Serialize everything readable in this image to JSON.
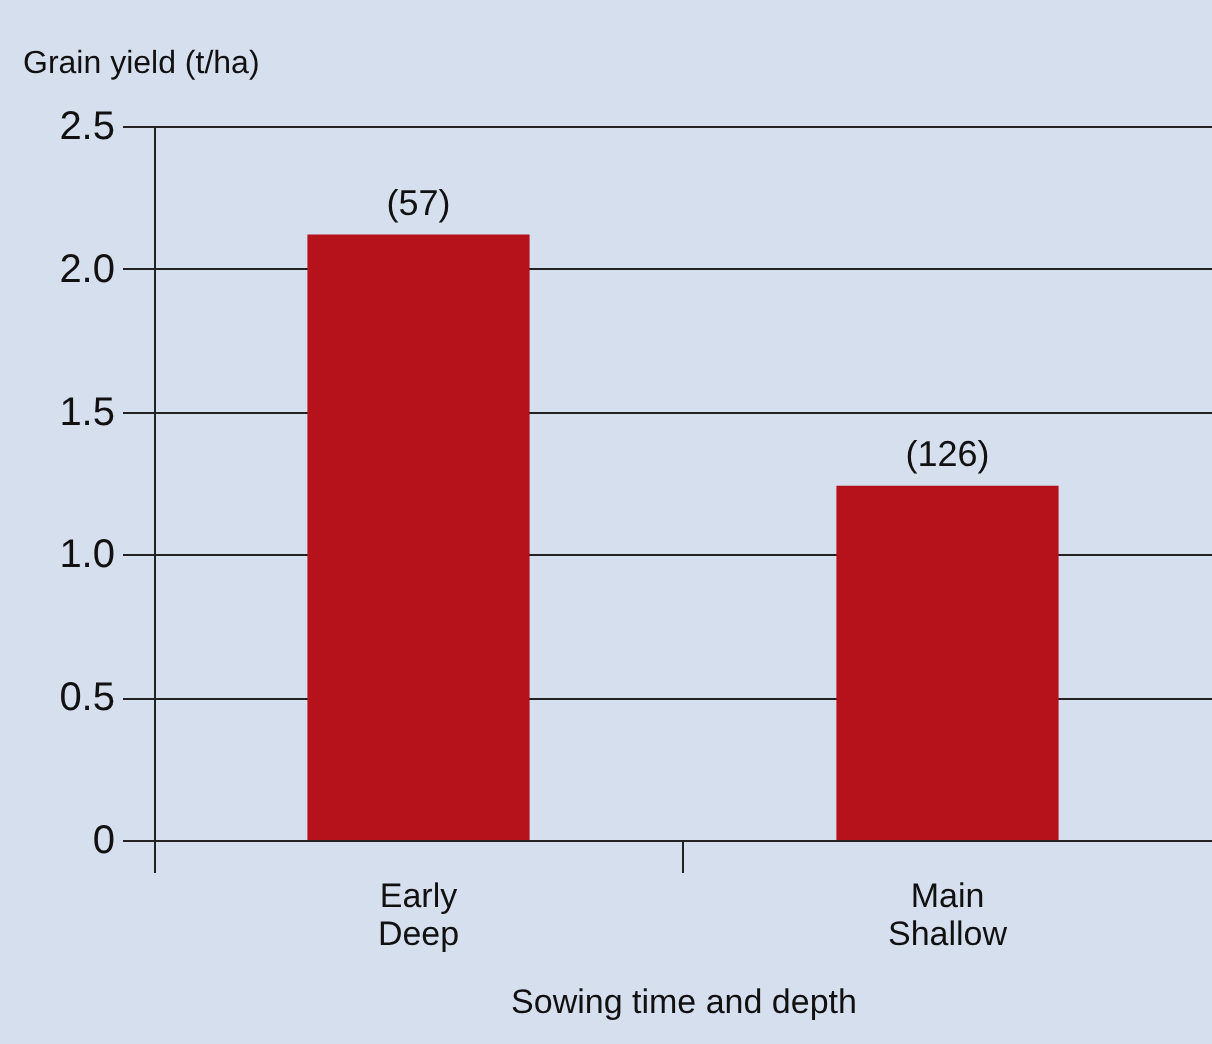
{
  "chart_data": {
    "type": "bar",
    "xlabel": "Sowing time and depth",
    "ylabel": "Grain yield (t/ha)",
    "categories": [
      "Early\nDeep",
      "Main\nShallow"
    ],
    "values": [
      2.12,
      1.24
    ],
    "annotations": [
      {
        "text": "(57)",
        "x": "Early\nDeep",
        "y": 2.12
      },
      {
        "text": "(126)",
        "x": "Main\nShallow",
        "y": 1.24
      }
    ],
    "color": "#b5121b",
    "ylim": [
      0,
      2.5
    ],
    "yticks": [
      0,
      {
        "value": 0.5,
        "label": "0.5"
      },
      {
        "value": 1.0,
        "label": "1.0"
      },
      {
        "value": 1.5,
        "label": "1.5"
      },
      {
        "value": 2.0,
        "label": "2.0"
      },
      {
        "value": 2.5,
        "label": "2.5"
      }
    ],
    "grid": "y"
  }
}
